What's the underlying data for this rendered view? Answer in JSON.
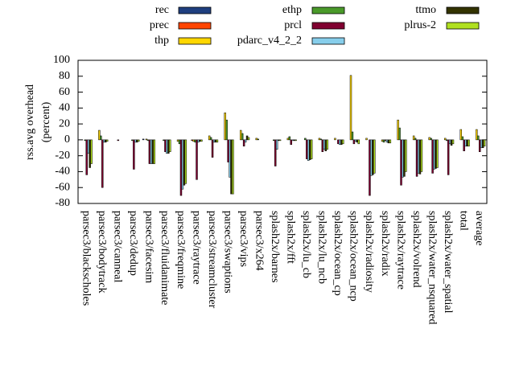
{
  "chart_data": {
    "type": "bar",
    "y_label_lines": [
      "rss.avg overhead",
      "(percent)"
    ],
    "categories": [
      "parsec3/blackscholes",
      "parsec3/bodytrack",
      "parsec3/canneal",
      "parsec3/dedup",
      "parsec3/facesim",
      "parsec3/fluidanimate",
      "parsec3/freqmine",
      "parsec3/raytrace",
      "parsec3/streamcluster",
      "parsec3/swaptions",
      "parsec3/vips",
      "parsec3/x264",
      "splash2x/barnes",
      "splash2x/fft",
      "splash2x/lu_cb",
      "splash2x/lu_ncb",
      "splash2x/ocean_cp",
      "splash2x/ocean_ncp",
      "splash2x/radiosity",
      "splash2x/radix",
      "splash2x/raytrace",
      "splash2x/volrend",
      "splash2x/water_nsquared",
      "splash2x/water_spatial",
      "total",
      "average"
    ],
    "series": [
      {
        "name": "rec",
        "color": "#1f3f7f",
        "values": [
          0,
          0,
          0,
          0,
          1,
          0,
          0,
          0,
          0,
          0,
          0,
          0,
          0,
          0,
          0,
          0,
          0,
          0,
          0,
          0,
          0,
          0,
          0,
          0,
          0,
          0
        ]
      },
      {
        "name": "prec",
        "color": "#ff4500",
        "values": [
          0,
          0,
          0,
          0,
          0,
          0,
          0,
          -1,
          0,
          0,
          0,
          0,
          0,
          0,
          0,
          0,
          0,
          0,
          0,
          0,
          0,
          0,
          0,
          0,
          0,
          0
        ]
      },
      {
        "name": "thp",
        "color": "#ffd700",
        "values": [
          0,
          12,
          0,
          0,
          1,
          0,
          -2,
          -2,
          5,
          34,
          12,
          2,
          0,
          2,
          0,
          2,
          2,
          81,
          2,
          -2,
          25,
          5,
          3,
          2,
          13,
          13
        ]
      },
      {
        "name": "ethp",
        "color": "#4a9a2a",
        "values": [
          -1,
          5,
          0,
          -1,
          -1,
          -1,
          -5,
          -3,
          3,
          25,
          8,
          1,
          -1,
          4,
          2,
          1,
          0,
          10,
          0,
          -3,
          15,
          2,
          2,
          -1,
          4,
          5
        ]
      },
      {
        "name": "prcl",
        "color": "#800030",
        "values": [
          -44,
          -60,
          -1,
          -37,
          -30,
          -15,
          -70,
          -50,
          -22,
          -28,
          -8,
          0,
          -33,
          -6,
          -24,
          -15,
          -5,
          -5,
          -70,
          -1,
          -57,
          -46,
          -42,
          -44,
          -14,
          -15
        ]
      },
      {
        "name": "pdarc_v4_2_2",
        "color": "#87ceeb",
        "values": [
          -17,
          -3,
          0,
          -3,
          -30,
          -17,
          -62,
          -3,
          -3,
          -47,
          -3,
          0,
          -12,
          -1,
          -26,
          -12,
          -6,
          -2,
          -45,
          -3,
          -47,
          -42,
          -37,
          -5,
          -8,
          -10
        ]
      },
      {
        "name": "ttmo",
        "color": "#333300",
        "values": [
          -35,
          -3,
          0,
          -3,
          -30,
          -17,
          -57,
          -2,
          -3,
          -68,
          5,
          0,
          -1,
          -1,
          -25,
          -14,
          -6,
          -3,
          -44,
          -4,
          -46,
          -43,
          -36,
          -7,
          -8,
          -10
        ]
      },
      {
        "name": "plrus-2",
        "color": "#b0e020",
        "values": [
          -30,
          -2,
          0,
          -2,
          -30,
          -15,
          -55,
          -2,
          -3,
          -68,
          3,
          0,
          -1,
          -1,
          -24,
          -12,
          -5,
          -5,
          -42,
          -4,
          -40,
          -40,
          -35,
          -5,
          -8,
          -8
        ]
      }
    ],
    "ylim": [
      -80,
      100
    ],
    "yticks": [
      -80,
      -60,
      -40,
      -20,
      0,
      20,
      40,
      60,
      80,
      100
    ]
  }
}
